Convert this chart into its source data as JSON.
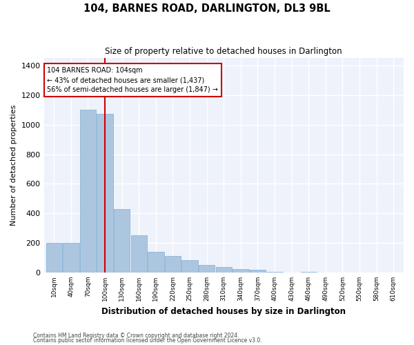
{
  "title": "104, BARNES ROAD, DARLINGTON, DL3 9BL",
  "subtitle": "Size of property relative to detached houses in Darlington",
  "xlabel": "Distribution of detached houses by size in Darlington",
  "ylabel": "Number of detached properties",
  "bar_color": "#adc6e0",
  "bar_edge_color": "#7bafd4",
  "background_color": "#eef2fb",
  "grid_color": "#ffffff",
  "annotation_box_color": "#cc0000",
  "vline_color": "#cc0000",
  "vline_x": 3,
  "annotation_text": "104 BARNES ROAD: 104sqm\n← 43% of detached houses are smaller (1,437)\n56% of semi-detached houses are larger (1,847) →",
  "footnote1": "Contains HM Land Registry data © Crown copyright and database right 2024.",
  "footnote2": "Contains public sector information licensed under the Open Government Licence v3.0.",
  "categories": [
    "10sqm",
    "40sqm",
    "70sqm",
    "100sqm",
    "130sqm",
    "160sqm",
    "190sqm",
    "220sqm",
    "250sqm",
    "280sqm",
    "310sqm",
    "340sqm",
    "370sqm",
    "400sqm",
    "430sqm",
    "460sqm",
    "490sqm",
    "520sqm",
    "550sqm",
    "580sqm",
    "610sqm"
  ],
  "bar_heights": [
    200,
    200,
    1100,
    1075,
    430,
    250,
    140,
    110,
    85,
    50,
    35,
    25,
    20,
    5,
    0,
    5,
    0,
    0,
    0,
    0,
    0
  ],
  "ylim": [
    0,
    1450
  ],
  "yticks": [
    0,
    200,
    400,
    600,
    800,
    1000,
    1200,
    1400
  ],
  "figsize": [
    6.0,
    5.0
  ],
  "dpi": 100
}
